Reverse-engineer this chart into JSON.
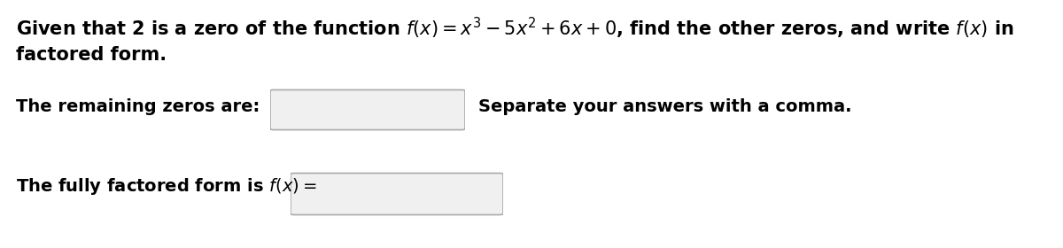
{
  "background_color": "#ffffff",
  "line1": "Given that 2 is a zero of the function $f(x) = x^3 - 5x^2 + 6x + 0$, find the other zeros, and write $f(x)$ in",
  "line2": "factored form.",
  "label_zeros": "The remaining zeros are:",
  "label_hint": "Separate your answers with a comma.",
  "label_factored": "The fully factored form is $f(x) =$",
  "font_size_main": 15,
  "font_size_label": 14,
  "fig_width": 12.0,
  "fig_height": 2.8,
  "dpi": 100,
  "box_facecolor": "#f0f0f0",
  "box_edgecolor": "#aaaaaa",
  "text_color": "#000000"
}
